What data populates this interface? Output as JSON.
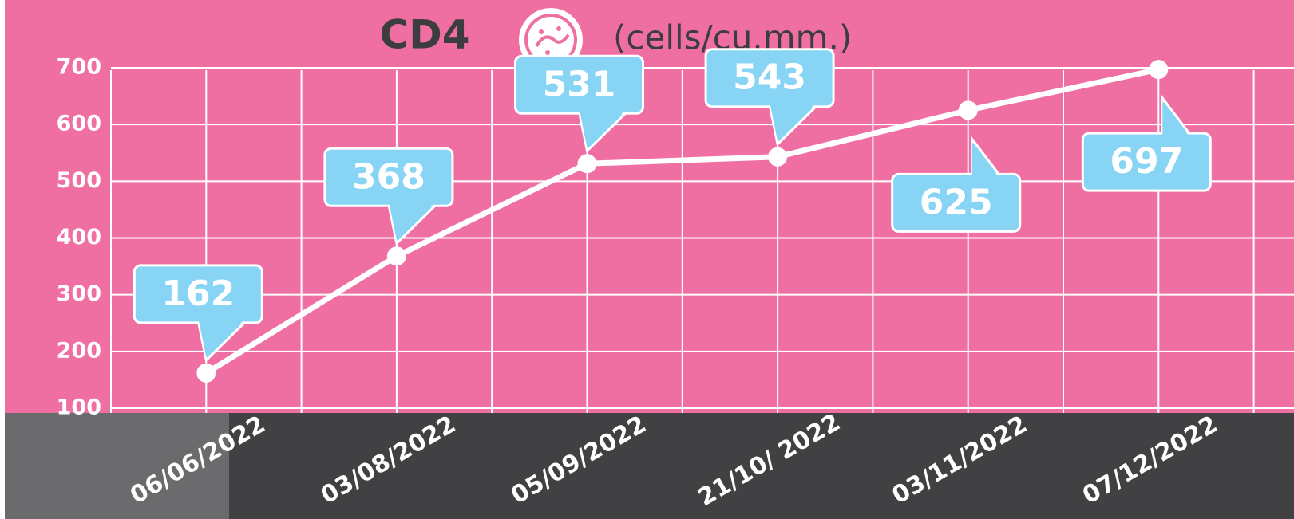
{
  "chart_data": {
    "type": "line",
    "title": "CD4",
    "subtitle": "(cells/cu.mm.)",
    "categories": [
      "06/06/2022",
      "03/08/2022",
      "05/09/2022",
      "21/10/ 2022",
      "03/11/2022",
      "07/12/2022"
    ],
    "series": [
      {
        "name": "CD4",
        "color": "#ffffff",
        "values": [
          162,
          368,
          531,
          543,
          625,
          697
        ]
      }
    ],
    "label_color": "#87d4f5",
    "ylim": [
      100,
      700
    ],
    "yticks": [
      100,
      200,
      300,
      400,
      500,
      600,
      700
    ],
    "grid": true
  }
}
